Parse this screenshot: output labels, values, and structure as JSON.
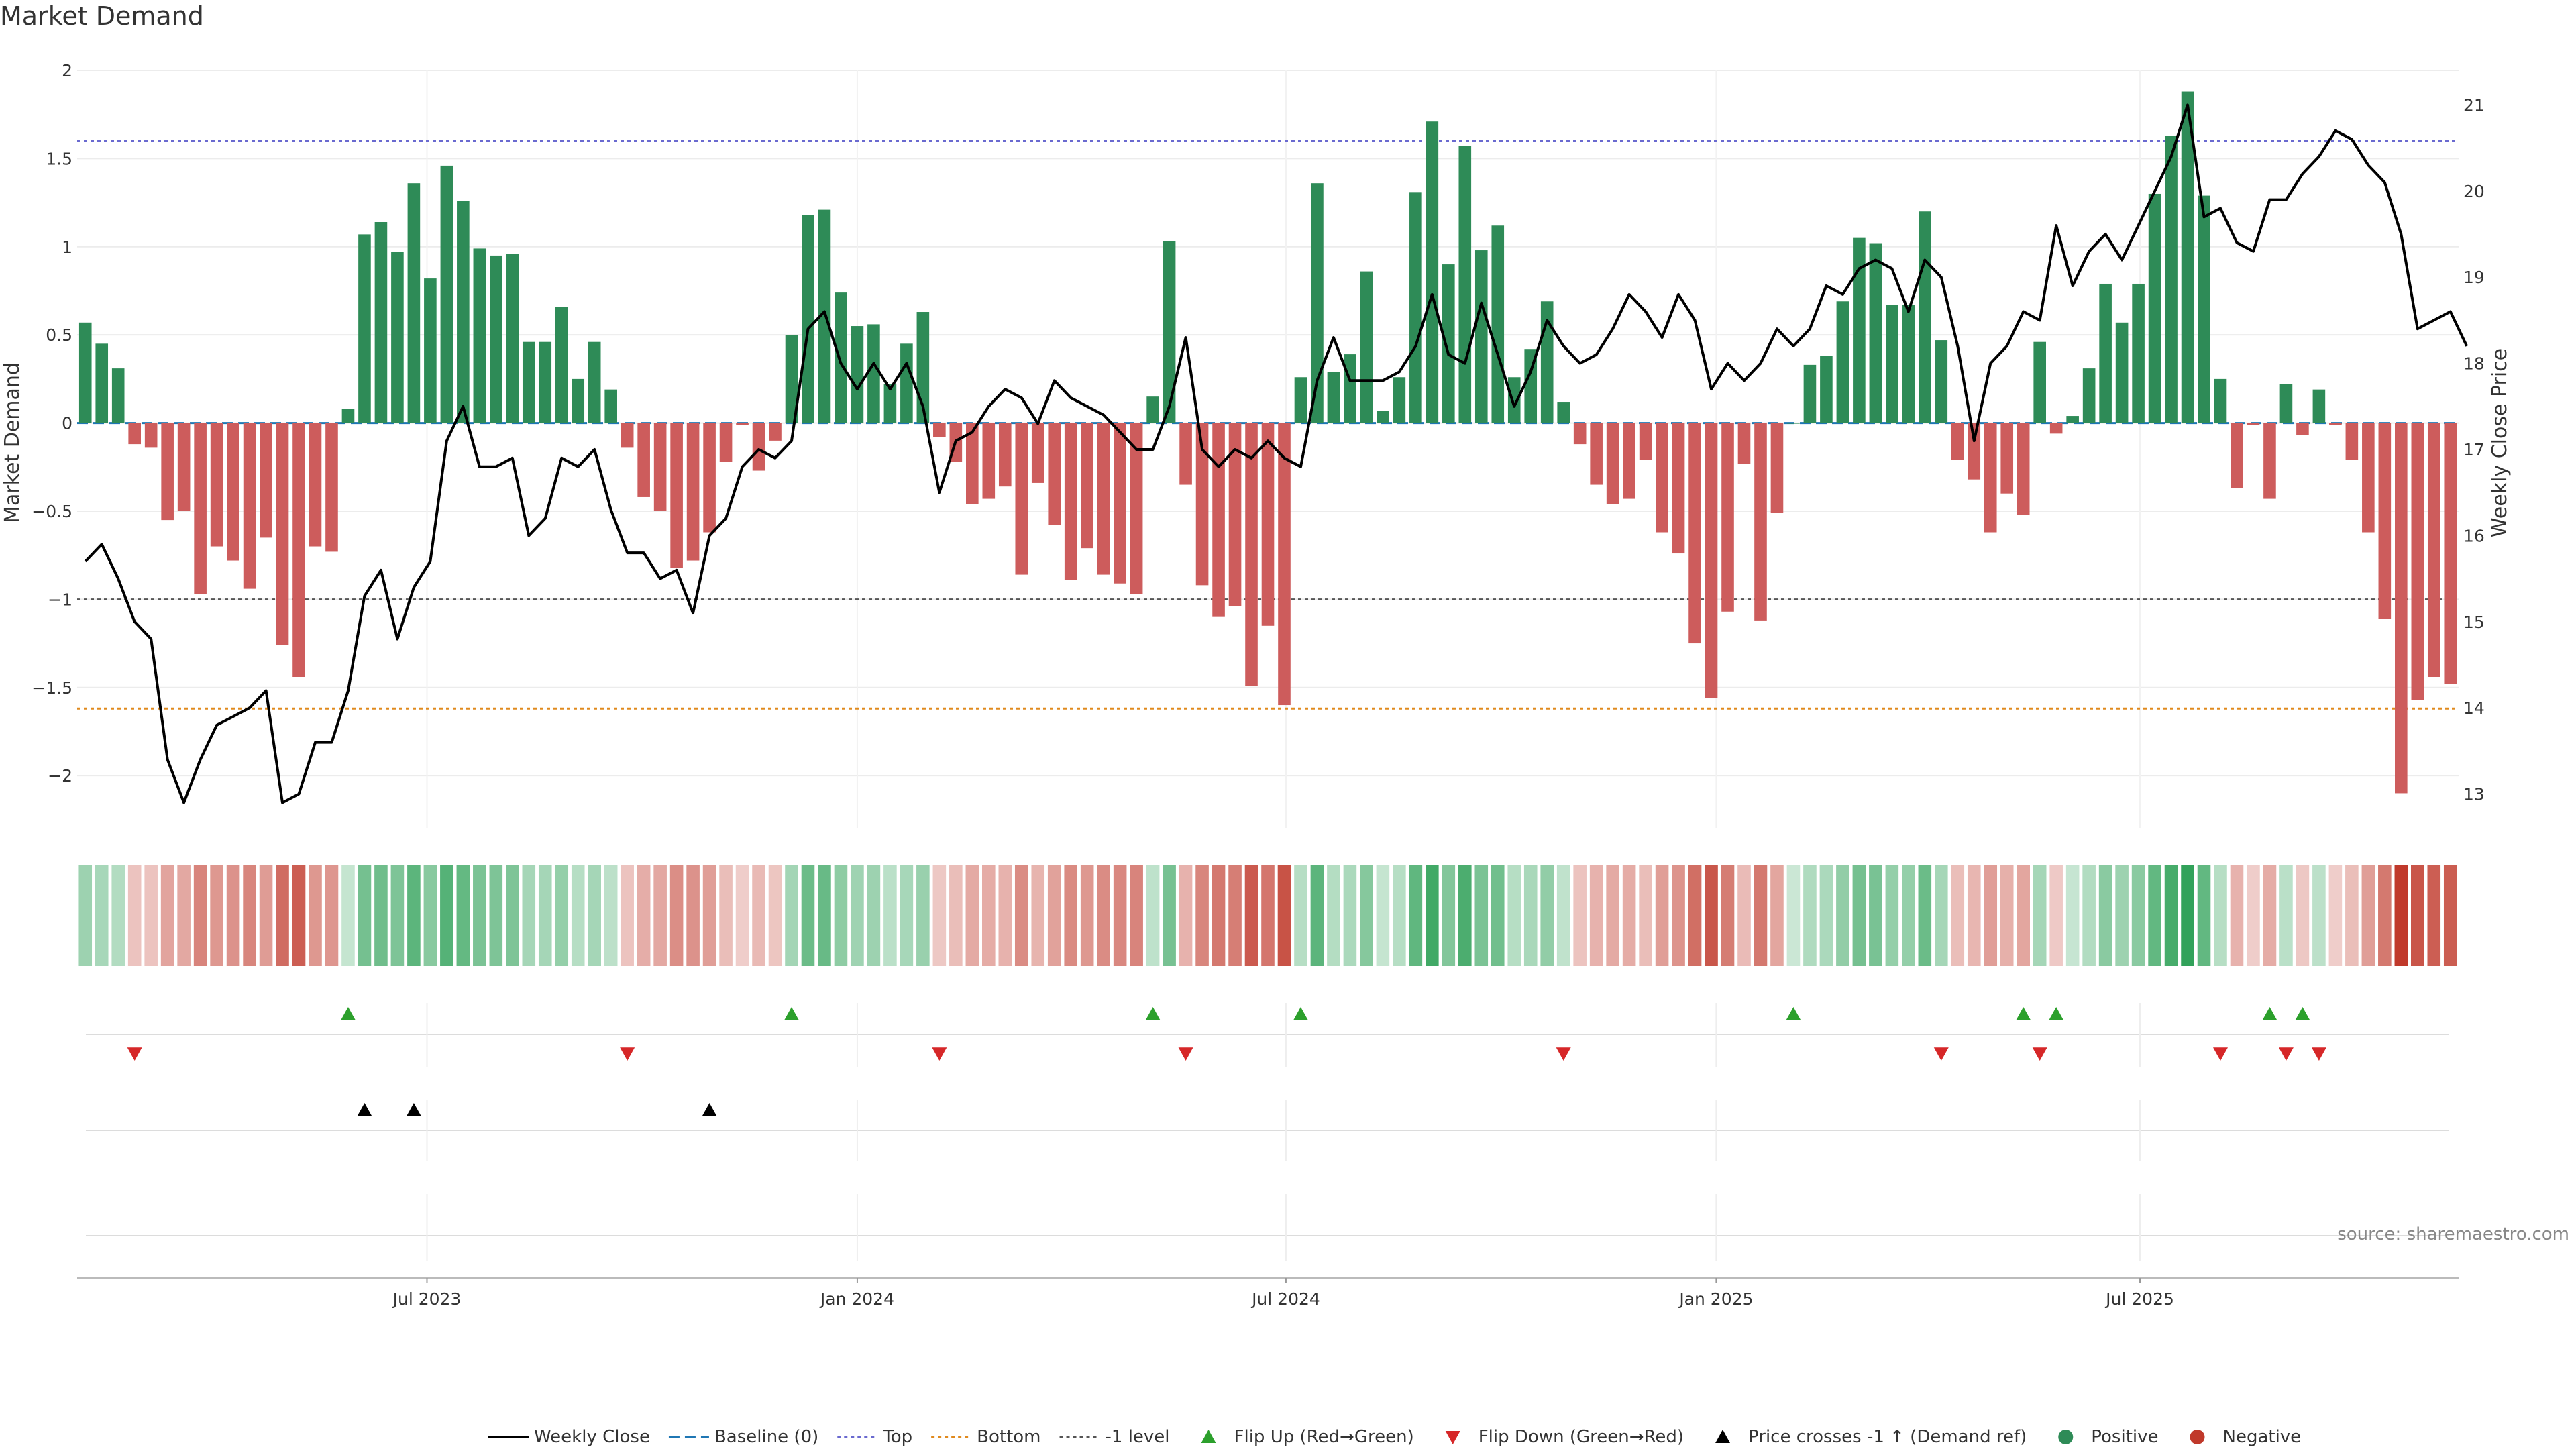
{
  "chart_data": {
    "type": "bar",
    "title": "Market Demand",
    "ylabel_left": "Market Demand",
    "ylabel_right": "Weekly Close Price",
    "ylim_left": [
      -2.3,
      2.0
    ],
    "ylim_right": [
      12.6,
      21.4
    ],
    "left_ticks": [
      {
        "value": 2,
        "label": "2"
      },
      {
        "value": 1.5,
        "label": "1.5"
      },
      {
        "value": 1,
        "label": "1"
      },
      {
        "value": 0.5,
        "label": "0.5"
      },
      {
        "value": 0,
        "label": "0"
      },
      {
        "value": -0.5,
        "label": "−0.5"
      },
      {
        "value": -1,
        "label": "−1"
      },
      {
        "value": -1.5,
        "label": "−1.5"
      },
      {
        "value": -2,
        "label": "−2"
      }
    ],
    "right_ticks": [
      {
        "value": 21,
        "label": "21"
      },
      {
        "value": 20,
        "label": "20"
      },
      {
        "value": 19,
        "label": "19"
      },
      {
        "value": 18,
        "label": "18"
      },
      {
        "value": 17,
        "label": "17"
      },
      {
        "value": 16,
        "label": "16"
      },
      {
        "value": 15,
        "label": "15"
      },
      {
        "value": 14,
        "label": "14"
      },
      {
        "value": 13,
        "label": "13"
      }
    ],
    "x_ticks": [
      {
        "index": 21.3,
        "label": "Jul 2023"
      },
      {
        "index": 47.5,
        "label": "Jan 2024"
      },
      {
        "index": 73.6,
        "label": "Jul 2024"
      },
      {
        "index": 99.8,
        "label": "Jan 2025"
      },
      {
        "index": 125.6,
        "label": "Jul 2025"
      }
    ],
    "reference_lines": {
      "top": 1.6,
      "bottom": -1.62,
      "minus_one": -1.0,
      "baseline": 0
    },
    "demand": [
      0.57,
      0.45,
      0.31,
      -0.12,
      -0.14,
      -0.55,
      -0.5,
      -0.97,
      -0.7,
      -0.78,
      -0.94,
      -0.65,
      -1.26,
      -1.44,
      -0.7,
      -0.73,
      0.08,
      1.07,
      1.14,
      0.97,
      1.36,
      0.82,
      1.46,
      1.26,
      0.99,
      0.95,
      0.96,
      0.46,
      0.46,
      0.66,
      0.25,
      0.46,
      0.19,
      -0.14,
      -0.42,
      -0.5,
      -0.82,
      -0.78,
      -0.62,
      -0.22,
      -0.01,
      -0.27,
      -0.1,
      0.5,
      1.18,
      1.21,
      0.74,
      0.55,
      0.56,
      0.22,
      0.45,
      0.63,
      -0.08,
      -0.22,
      -0.46,
      -0.43,
      -0.36,
      -0.86,
      -0.34,
      -0.58,
      -0.89,
      -0.71,
      -0.86,
      -0.91,
      -0.97,
      0.15,
      1.03,
      -0.35,
      -0.92,
      -1.1,
      -1.04,
      -1.49,
      -1.15,
      -1.6,
      0.26,
      1.36,
      0.29,
      0.39,
      0.86,
      0.07,
      0.26,
      1.31,
      1.71,
      0.9,
      1.57,
      0.98,
      1.12,
      0.26,
      0.42,
      0.69,
      0.12,
      -0.12,
      -0.35,
      -0.46,
      -0.43,
      -0.21,
      -0.62,
      -0.74,
      -1.25,
      -1.56,
      -1.07,
      -0.23,
      -1.12,
      -0.51,
      0.0,
      0.33,
      0.38,
      0.69,
      1.05,
      1.02,
      0.67,
      0.67,
      1.2,
      0.47,
      -0.21,
      -0.32,
      -0.62,
      -0.4,
      -0.52,
      0.46,
      -0.06,
      0.04,
      0.31,
      0.79,
      0.57,
      0.79,
      1.3,
      1.63,
      1.88,
      1.29,
      0.25,
      -0.37,
      -0.01,
      -0.43,
      0.22,
      -0.07,
      0.19,
      -0.01,
      -0.21,
      -0.62,
      -1.11,
      -2.1,
      -1.57,
      -1.44,
      -1.48
    ],
    "close": [
      15.7,
      15.9,
      15.5,
      15.0,
      14.8,
      13.4,
      12.9,
      13.4,
      13.8,
      13.9,
      14.0,
      14.2,
      12.9,
      13.0,
      13.6,
      13.6,
      14.2,
      15.3,
      15.6,
      14.8,
      15.4,
      15.7,
      17.1,
      17.5,
      16.8,
      16.8,
      16.9,
      16.0,
      16.2,
      16.9,
      16.8,
      17.0,
      16.3,
      15.8,
      15.8,
      15.5,
      15.6,
      15.1,
      16.0,
      16.2,
      16.8,
      17.0,
      16.9,
      17.1,
      18.4,
      18.6,
      18.0,
      17.7,
      18.0,
      17.7,
      18.0,
      17.5,
      16.5,
      17.1,
      17.2,
      17.5,
      17.7,
      17.6,
      17.3,
      17.8,
      17.6,
      17.5,
      17.4,
      17.2,
      17.0,
      17.0,
      17.5,
      18.3,
      17.0,
      16.8,
      17.0,
      16.9,
      17.1,
      16.9,
      16.8,
      17.8,
      18.3,
      17.8,
      17.8,
      17.8,
      17.9,
      18.2,
      18.8,
      18.1,
      18.0,
      18.7,
      18.1,
      17.5,
      17.9,
      18.5,
      18.2,
      18.0,
      18.1,
      18.4,
      18.8,
      18.6,
      18.3,
      18.8,
      18.5,
      17.7,
      18.0,
      17.8,
      18.0,
      18.4,
      18.2,
      18.4,
      18.9,
      18.8,
      19.1,
      19.2,
      19.1,
      18.6,
      19.2,
      19.0,
      18.2,
      17.1,
      18.0,
      18.2,
      18.6,
      18.5,
      19.6,
      18.9,
      19.3,
      19.5,
      19.2,
      19.6,
      20.0,
      20.4,
      21.0,
      19.7,
      19.8,
      19.4,
      19.3,
      19.9,
      19.9,
      20.2,
      20.4,
      20.7,
      20.6,
      20.3,
      20.1,
      19.5,
      18.4,
      18.5,
      18.6,
      18.2
    ],
    "flip_up_indices": [
      16,
      43,
      65,
      74,
      104,
      118,
      120,
      133,
      135
    ],
    "flip_down_indices": [
      3,
      33,
      52,
      67,
      90,
      113,
      119,
      130,
      134,
      136
    ],
    "price_cross_indices": [
      17,
      20,
      38
    ],
    "series": [
      {
        "name": "Weekly Close",
        "color": "#000000"
      },
      {
        "name": "Baseline (0)",
        "color": "#1f77b4"
      },
      {
        "name": "Top",
        "color": "#6a6ad0"
      },
      {
        "name": "Bottom",
        "color": "#e08a1e"
      },
      {
        "name": "-1 level",
        "color": "#555555"
      },
      {
        "name": "Flip Up (Red→Green)",
        "color": "#2ca02c"
      },
      {
        "name": "Flip Down (Green→Red)",
        "color": "#d62728"
      },
      {
        "name": "Price crosses -1 ↑ (Demand ref)",
        "color": "#000000"
      },
      {
        "name": "Positive",
        "color": "#2e8b57"
      },
      {
        "name": "Negative",
        "color": "#c0392b"
      }
    ],
    "legend_position": "bottom-center",
    "grid": true
  },
  "colors": {
    "positive_bar": "#2e8b57",
    "negative_bar": "#cd5c5c"
  },
  "source_text": "source: sharemaestro.com"
}
